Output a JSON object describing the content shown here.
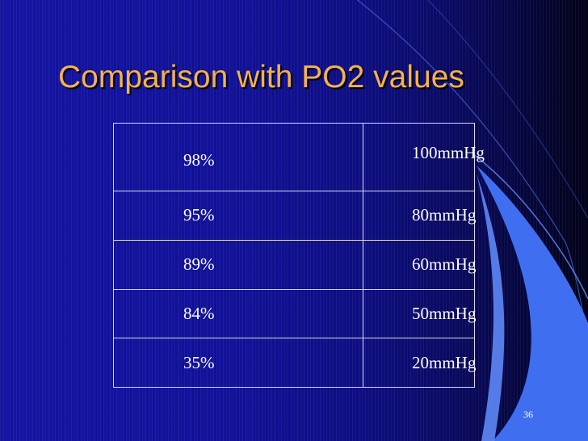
{
  "slide": {
    "title": "Comparison with PO2 values",
    "number": "36",
    "title_color": "#f5b24a",
    "background_color": "#1414a6",
    "accent_color": "#3f6ff0"
  },
  "table": {
    "rows": [
      {
        "saturation": "98%",
        "po2": "100mmHg"
      },
      {
        "saturation": "95%",
        "po2": "80mmHg"
      },
      {
        "saturation": "89%",
        "po2": "60mmHg"
      },
      {
        "saturation": "84%",
        "po2": "50mmHg"
      },
      {
        "saturation": "35%",
        "po2": "20mmHg"
      }
    ]
  }
}
